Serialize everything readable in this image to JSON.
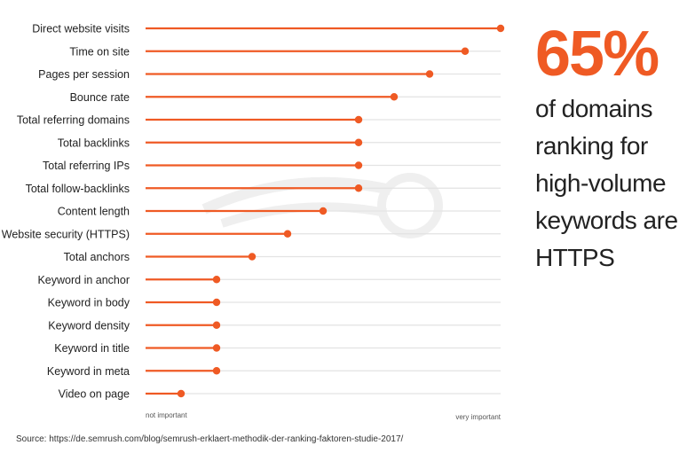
{
  "chart_data": {
    "type": "lollipop",
    "orientation": "horizontal",
    "categories": [
      "Direct website visits",
      "Time on site",
      "Pages per session",
      "Bounce rate",
      "Total referring domains",
      "Total backlinks",
      "Total referring IPs",
      "Total follow-backlinks",
      "Content length",
      "Website security (HTTPS)",
      "Total anchors",
      "Keyword in anchor",
      "Keyword in body",
      "Keyword density",
      "Keyword in title",
      "Keyword in meta",
      "Video on page"
    ],
    "values": [
      1.0,
      0.9,
      0.8,
      0.7,
      0.6,
      0.6,
      0.6,
      0.6,
      0.5,
      0.4,
      0.3,
      0.2,
      0.2,
      0.2,
      0.2,
      0.2,
      0.1
    ],
    "xlim": [
      0,
      1
    ],
    "x_axis_min_label": "not important",
    "x_axis_max_label": "very important",
    "grid": true,
    "colors": {
      "accent": "#ef5a24",
      "grid": "#e3e3e3",
      "text": "#222222"
    }
  },
  "callout": {
    "percent": "65%",
    "lines": [
      "of domains",
      "ranking for",
      "high-volume",
      "keywords are",
      "HTTPS"
    ]
  },
  "source": "Source: https://de.semrush.com/blog/semrush-erklaert-methodik-der-ranking-faktoren-studie-2017/"
}
